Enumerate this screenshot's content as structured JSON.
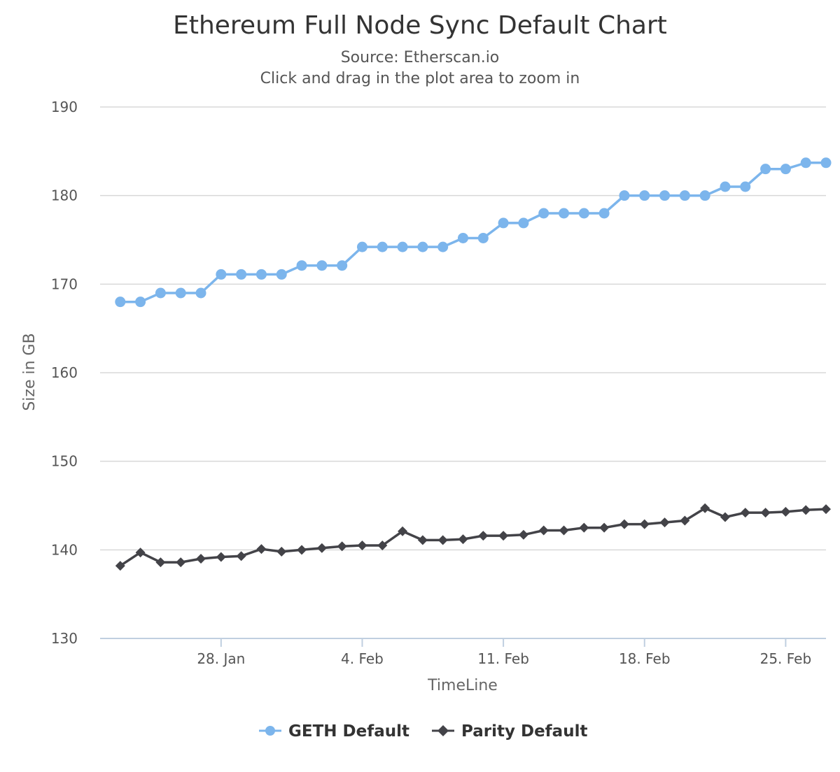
{
  "chart_data": {
    "type": "line",
    "title": "Ethereum Full Node Sync Default Chart",
    "subtitle": "Source: Etherscan.io",
    "subtitle2": "Click and drag in the plot area to zoom in",
    "ylabel": "Size in GB",
    "xlabel": "TimeLine",
    "ylim": [
      130,
      190
    ],
    "y_ticks": [
      "130",
      "140",
      "150",
      "160",
      "170",
      "180",
      "190"
    ],
    "xlim": [
      "2018-01-22",
      "2018-02-27"
    ],
    "x_ticks": [
      {
        "date": "2018-01-28",
        "label": "28. Jan"
      },
      {
        "date": "2018-02-04",
        "label": "4. Feb"
      },
      {
        "date": "2018-02-11",
        "label": "11. Feb"
      },
      {
        "date": "2018-02-18",
        "label": "18. Feb"
      },
      {
        "date": "2018-02-25",
        "label": "25. Feb"
      }
    ],
    "x": [
      "2018-01-23",
      "2018-01-24",
      "2018-01-25",
      "2018-01-26",
      "2018-01-27",
      "2018-01-28",
      "2018-01-29",
      "2018-01-30",
      "2018-01-31",
      "2018-02-01",
      "2018-02-02",
      "2018-02-03",
      "2018-02-04",
      "2018-02-05",
      "2018-02-06",
      "2018-02-07",
      "2018-02-08",
      "2018-02-09",
      "2018-02-10",
      "2018-02-11",
      "2018-02-12",
      "2018-02-13",
      "2018-02-14",
      "2018-02-15",
      "2018-02-16",
      "2018-02-17",
      "2018-02-18",
      "2018-02-19",
      "2018-02-20",
      "2018-02-21",
      "2018-02-22",
      "2018-02-23",
      "2018-02-24",
      "2018-02-25",
      "2018-02-26",
      "2018-02-27"
    ],
    "series": [
      {
        "name": "GETH Default",
        "color": "#7cb5ec",
        "marker": "circle",
        "values": [
          168.0,
          168.0,
          169.0,
          169.0,
          169.0,
          171.1,
          171.1,
          171.1,
          171.1,
          172.1,
          172.1,
          172.1,
          174.2,
          174.2,
          174.2,
          174.2,
          174.2,
          175.2,
          175.2,
          176.9,
          176.9,
          178.0,
          178.0,
          178.0,
          178.0,
          180.0,
          180.0,
          180.0,
          180.0,
          180.0,
          181.0,
          181.0,
          183.0,
          183.0,
          183.7,
          183.7
        ]
      },
      {
        "name": "Parity Default",
        "color": "#434348",
        "marker": "diamond",
        "values": [
          138.2,
          139.7,
          138.6,
          138.6,
          139.0,
          139.2,
          139.3,
          140.1,
          139.8,
          140.0,
          140.2,
          140.4,
          140.5,
          140.5,
          142.1,
          141.1,
          141.1,
          141.2,
          141.6,
          141.6,
          141.7,
          142.2,
          142.2,
          142.5,
          142.5,
          142.9,
          142.9,
          143.1,
          143.3,
          144.7,
          143.7,
          144.2,
          144.2,
          144.3,
          144.5,
          144.6
        ]
      }
    ]
  }
}
